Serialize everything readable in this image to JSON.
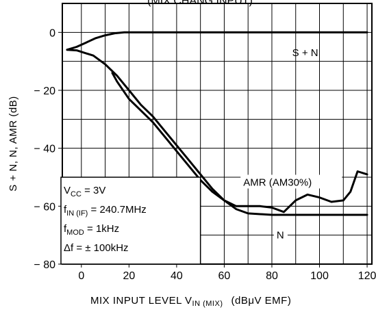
{
  "chart_data": {
    "type": "line",
    "title": "(MIX CHANG INPUT)",
    "xlabel": "MIX INPUT LEVEL   V",
    "xlabel_sub": "IN (MIX)",
    "xlabel_unit": "(dBμV EMF)",
    "ylabel": "S + N, N, AMR  (dB)",
    "xlim": [
      -8,
      122
    ],
    "ylim": [
      -80,
      10
    ],
    "x_ticks": [
      0,
      20,
      40,
      60,
      80,
      100,
      120
    ],
    "y_ticks": [
      0,
      -20,
      -40,
      -60,
      -80
    ],
    "grid": true,
    "series": [
      {
        "name": "S + N",
        "x": [
          -6,
          -2,
          2,
          6,
          10,
          14,
          18,
          22,
          30,
          40,
          60,
          80,
          100,
          120
        ],
        "y": [
          -6,
          -5,
          -3.5,
          -2,
          -1,
          -0.3,
          0,
          0,
          0,
          0,
          0,
          0,
          0,
          0
        ]
      },
      {
        "name": "N",
        "x": [
          -6,
          -2,
          5,
          10,
          15,
          20,
          25,
          30,
          35,
          40,
          45,
          50,
          55,
          60,
          65,
          70,
          80,
          90,
          100,
          110,
          120
        ],
        "y": [
          -6,
          -6.2,
          -8,
          -11,
          -15,
          -20,
          -25,
          -29,
          -34,
          -39,
          -44,
          -49,
          -54,
          -58,
          -61,
          -62.5,
          -63,
          -63,
          -63,
          -63,
          -63
        ]
      },
      {
        "name": "AMR (AM30%)",
        "x": [
          13,
          15,
          20,
          25,
          30,
          35,
          40,
          45,
          50,
          55,
          60,
          65,
          70,
          75,
          80,
          85,
          90,
          95,
          100,
          105,
          110,
          113,
          116,
          120
        ],
        "y": [
          -14,
          -17,
          -23,
          -27,
          -31,
          -36,
          -41,
          -46,
          -51,
          -55,
          -58,
          -60,
          -60,
          -60,
          -60.5,
          -62,
          -58,
          -56,
          -57,
          -58.5,
          -58,
          -55,
          -48,
          -49
        ]
      }
    ],
    "annotations": {
      "series_labels": [
        "S + N",
        "AMR (AM30%)",
        "N"
      ],
      "conditions": [
        {
          "main": "V",
          "sub": "CC",
          "rest": " = 3V"
        },
        {
          "main": "f",
          "sub": "IN (IF)",
          "rest": " = 240.7MHz"
        },
        {
          "main": "f",
          "sub": "MOD",
          "rest": " = 1kHz"
        },
        {
          "main": "Δf",
          "sub": "",
          "rest": " = ± 100kHz"
        }
      ]
    }
  }
}
